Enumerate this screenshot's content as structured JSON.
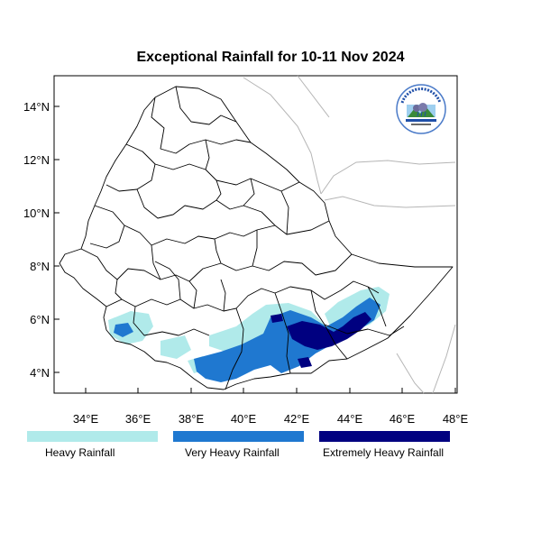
{
  "title": "Exceptional Rainfall for 10-11 Nov 2024",
  "map": {
    "lon_ticks": [
      "34°E",
      "36°E",
      "38°E",
      "40°E",
      "42°E",
      "44°E",
      "46°E",
      "48°E"
    ],
    "lat_ticks": [
      "4°N",
      "6°N",
      "8°N",
      "10°N",
      "12°N",
      "14°N"
    ]
  },
  "legend": [
    {
      "label": "Heavy Rainfall",
      "color": "#b0eaea"
    },
    {
      "label": "Very Heavy Rainfall",
      "color": "#1f78d0"
    },
    {
      "label": "Extremely Heavy Rainfall",
      "color": "#000080"
    }
  ],
  "colors": {
    "heavy": "#b0eaea",
    "very_heavy": "#1f78d0",
    "extreme": "#000080",
    "border": "#000000",
    "neighbor": "#b5b5b5"
  },
  "logo": {
    "icon": "ethiopian-meteorology-institute-logo"
  }
}
